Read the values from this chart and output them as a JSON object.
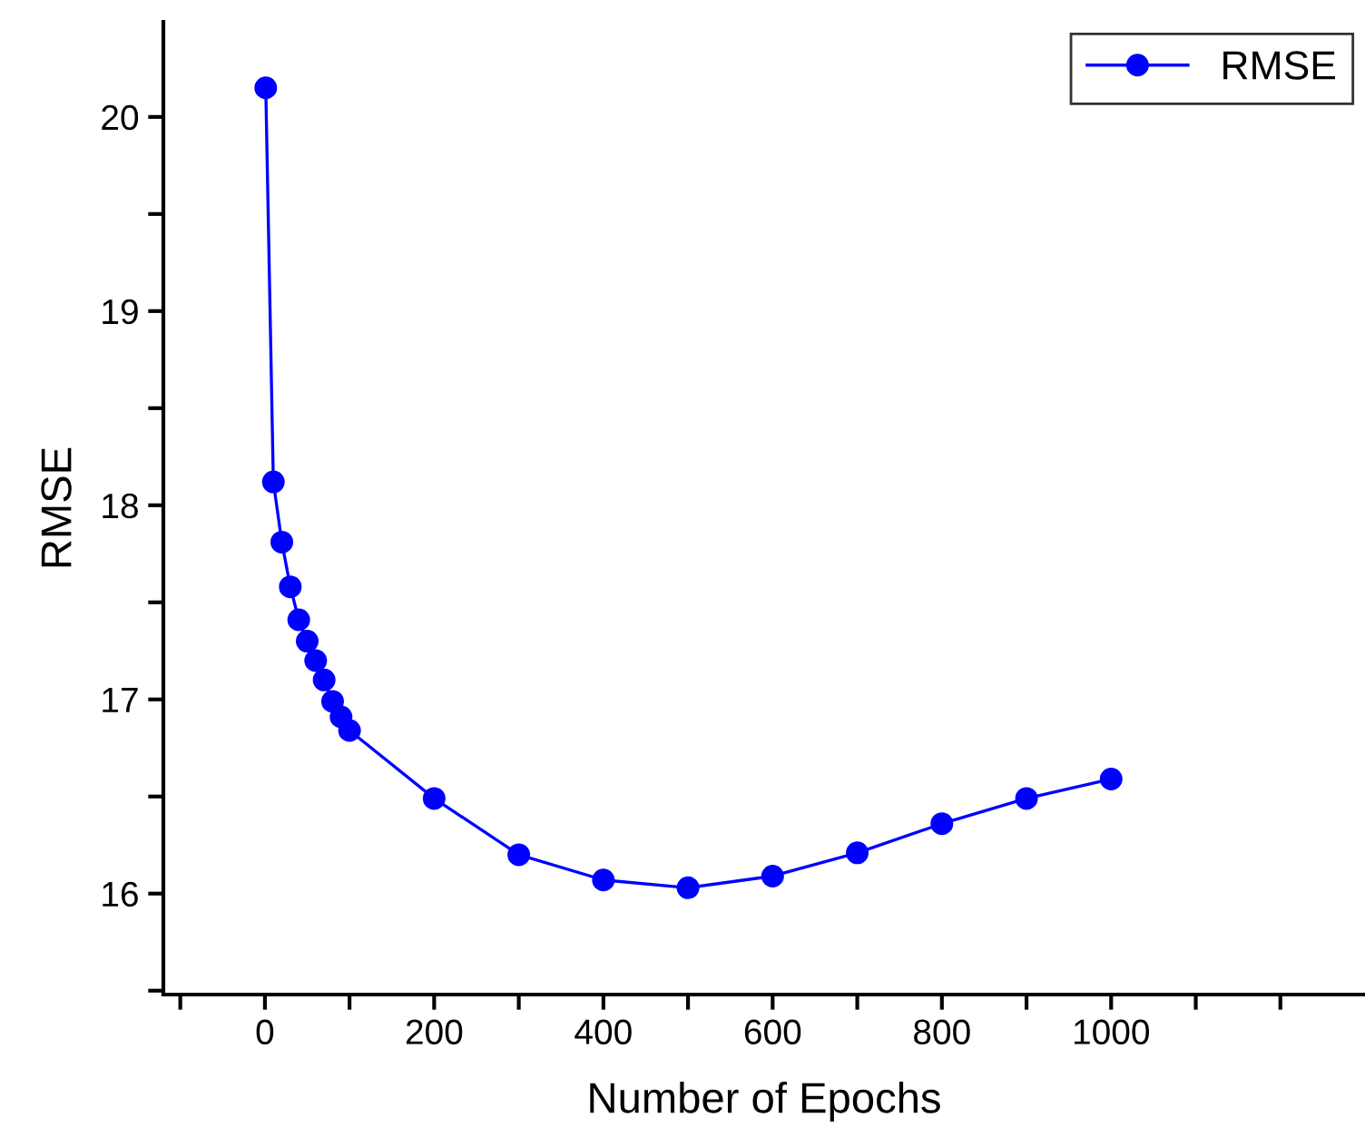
{
  "chart_data": {
    "type": "line",
    "xlabel": "Number of Epochs",
    "ylabel": "RMSE",
    "x": [
      1,
      10,
      20,
      30,
      40,
      50,
      60,
      70,
      80,
      90,
      100,
      200,
      300,
      400,
      500,
      600,
      700,
      800,
      900,
      1000
    ],
    "series": [
      {
        "name": "RMSE",
        "color": "#0000ff",
        "values": [
          20.15,
          18.12,
          17.81,
          17.58,
          17.41,
          17.3,
          17.2,
          17.1,
          16.99,
          16.91,
          16.84,
          16.49,
          16.2,
          16.07,
          16.03,
          16.09,
          16.21,
          16.36,
          16.49,
          16.59
        ]
      }
    ],
    "xlim": [
      -120,
      1300
    ],
    "xticks": [
      {
        "value": -100,
        "label": null
      },
      0,
      {
        "value": 100,
        "label": null
      },
      200,
      {
        "value": 300,
        "label": null
      },
      400,
      {
        "value": 500,
        "label": null
      },
      600,
      {
        "value": 700,
        "label": null
      },
      800,
      {
        "value": 900,
        "label": null
      },
      1000,
      {
        "value": 1100,
        "label": null
      },
      {
        "value": 1200,
        "label": null
      }
    ],
    "ylim": [
      15.48,
      20.49
    ],
    "yticks": [
      {
        "value": 15.5,
        "label": null
      },
      16,
      {
        "value": 16.5,
        "label": null
      },
      17,
      {
        "value": 17.5,
        "label": null
      },
      18,
      {
        "value": 18.5,
        "label": null
      },
      19,
      {
        "value": 19.5,
        "label": null
      },
      20
    ],
    "marker": "circle",
    "line_style": "solid",
    "grid": false,
    "legend": "top right"
  }
}
